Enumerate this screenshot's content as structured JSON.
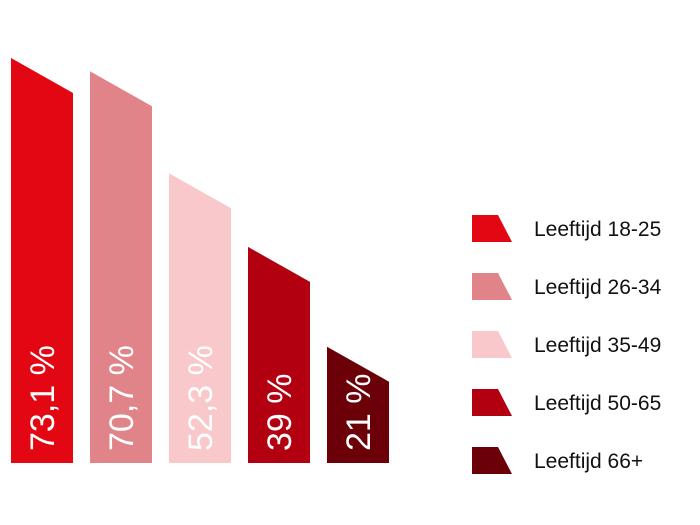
{
  "chart_data": {
    "type": "bar",
    "categories": [
      "Leeftijd 18-25",
      "Leeftijd 26-34",
      "Leeftijd 35-49",
      "Leeftijd 50-65",
      "Leeftijd 66+"
    ],
    "values": [
      73.1,
      70.7,
      52.3,
      39,
      21
    ],
    "value_labels": [
      "73,1 %",
      "70,7 %",
      "52,3 %",
      "39 %",
      "21 %"
    ],
    "colors": [
      "#e30613",
      "#e0848a",
      "#f9c8cb",
      "#b30011",
      "#6b0008"
    ],
    "title": "",
    "xlabel": "",
    "ylabel": "",
    "ylim": [
      0,
      80
    ],
    "grid": false,
    "legend": {
      "placement": "right",
      "entries": [
        "Leeftijd 18-25",
        "Leeftijd 26-34",
        "Leeftijd 35-49",
        "Leeftijd 50-65",
        "Leeftijd 66+"
      ]
    }
  }
}
